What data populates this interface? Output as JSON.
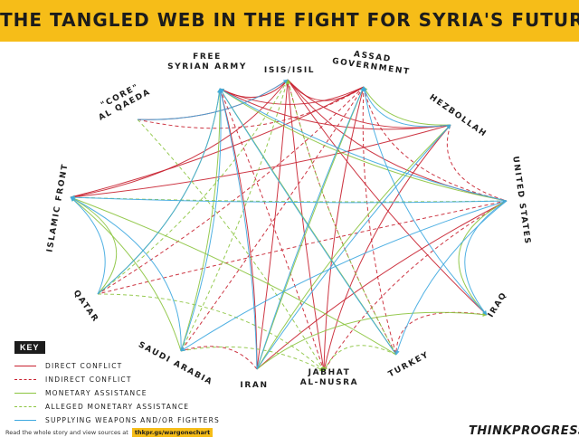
{
  "title": "THE TANGLED WEB IN THE FIGHT FOR SYRIA'S FUTURE",
  "nodes": [
    {
      "id": "fsa",
      "label_lines": [
        "FREE",
        "SYRIAN ARMY"
      ]
    },
    {
      "id": "isis",
      "label_lines": [
        "ISIS/ISIL"
      ]
    },
    {
      "id": "assad",
      "label_lines": [
        "ASSAD",
        "GOVERNMENT"
      ]
    },
    {
      "id": "hezbollah",
      "label_lines": [
        "HEZBOLLAH"
      ]
    },
    {
      "id": "usa",
      "label_lines": [
        "UNITED STATES"
      ]
    },
    {
      "id": "iraq",
      "label_lines": [
        "IRAQ"
      ]
    },
    {
      "id": "turkey",
      "label_lines": [
        "TURKEY"
      ]
    },
    {
      "id": "nusra",
      "label_lines": [
        "JABHAT",
        "AL-NUSRA"
      ]
    },
    {
      "id": "iran",
      "label_lines": [
        "IRAN"
      ]
    },
    {
      "id": "saudi",
      "label_lines": [
        "SAUDI ARABIA"
      ]
    },
    {
      "id": "qatar",
      "label_lines": [
        "QATAR"
      ]
    },
    {
      "id": "islamicfront",
      "label_lines": [
        "ISLAMIC FRONT"
      ]
    },
    {
      "id": "alqaeda",
      "label_lines": [
        "\"CORE\"",
        "AL QAEDA"
      ]
    }
  ],
  "relation_types": {
    "direct": {
      "color": "#c8202f",
      "dashed": false
    },
    "indirect": {
      "color": "#c8202f",
      "dashed": true
    },
    "money": {
      "color": "#8cc540",
      "dashed": false
    },
    "alleged": {
      "color": "#8cc540",
      "dashed": true
    },
    "weapons": {
      "color": "#3fa9e0",
      "dashed": false
    }
  },
  "relations": [
    {
      "from": "isis",
      "to": "fsa",
      "type": "direct"
    },
    {
      "from": "isis",
      "to": "assad",
      "type": "direct"
    },
    {
      "from": "isis",
      "to": "nusra",
      "type": "direct"
    },
    {
      "from": "isis",
      "to": "islamicfront",
      "type": "direct"
    },
    {
      "from": "isis",
      "to": "iraq",
      "type": "direct"
    },
    {
      "from": "isis",
      "to": "iran",
      "type": "direct"
    },
    {
      "from": "isis",
      "to": "hezbollah",
      "type": "direct"
    },
    {
      "from": "isis",
      "to": "usa",
      "type": "direct"
    },
    {
      "from": "isis",
      "to": "alqaeda",
      "type": "direct"
    },
    {
      "from": "fsa",
      "to": "assad",
      "type": "direct"
    },
    {
      "from": "fsa",
      "to": "hezbollah",
      "type": "direct"
    },
    {
      "from": "fsa",
      "to": "iran",
      "type": "direct"
    },
    {
      "from": "islamicfront",
      "to": "assad",
      "type": "direct"
    },
    {
      "from": "islamicfront",
      "to": "hezbollah",
      "type": "direct"
    },
    {
      "from": "nusra",
      "to": "assad",
      "type": "direct"
    },
    {
      "from": "nusra",
      "to": "hezbollah",
      "type": "direct"
    },
    {
      "from": "usa",
      "to": "iran",
      "type": "direct"
    },
    {
      "from": "hezbollah",
      "to": "usa",
      "type": "indirect"
    },
    {
      "from": "fsa",
      "to": "nusra",
      "type": "indirect"
    },
    {
      "from": "isis",
      "to": "turkey",
      "type": "indirect"
    },
    {
      "from": "assad",
      "to": "saudi",
      "type": "indirect"
    },
    {
      "from": "assad",
      "to": "turkey",
      "type": "indirect"
    },
    {
      "from": "assad",
      "to": "qatar",
      "type": "indirect"
    },
    {
      "from": "assad",
      "to": "usa",
      "type": "indirect"
    },
    {
      "from": "iran",
      "to": "saudi",
      "type": "indirect"
    },
    {
      "from": "usa",
      "to": "nusra",
      "type": "indirect"
    },
    {
      "from": "iraq",
      "to": "turkey",
      "type": "indirect"
    },
    {
      "from": "alqaeda",
      "to": "assad",
      "type": "indirect"
    },
    {
      "from": "usa",
      "to": "qatar",
      "type": "indirect"
    },
    {
      "from": "iran",
      "to": "assad",
      "type": "money"
    },
    {
      "from": "iran",
      "to": "hezbollah",
      "type": "money"
    },
    {
      "from": "iran",
      "to": "iraq",
      "type": "money"
    },
    {
      "from": "saudi",
      "to": "islamicfront",
      "type": "money"
    },
    {
      "from": "saudi",
      "to": "fsa",
      "type": "money"
    },
    {
      "from": "qatar",
      "to": "islamicfront",
      "type": "money"
    },
    {
      "from": "qatar",
      "to": "fsa",
      "type": "money"
    },
    {
      "from": "turkey",
      "to": "fsa",
      "type": "money"
    },
    {
      "from": "turkey",
      "to": "islamicfront",
      "type": "money"
    },
    {
      "from": "usa",
      "to": "fsa",
      "type": "money"
    },
    {
      "from": "usa",
      "to": "iraq",
      "type": "money"
    },
    {
      "from": "hezbollah",
      "to": "assad",
      "type": "money"
    },
    {
      "from": "saudi",
      "to": "isis",
      "type": "alleged"
    },
    {
      "from": "qatar",
      "to": "isis",
      "type": "alleged"
    },
    {
      "from": "qatar",
      "to": "nusra",
      "type": "alleged"
    },
    {
      "from": "saudi",
      "to": "nusra",
      "type": "alleged"
    },
    {
      "from": "turkey",
      "to": "nusra",
      "type": "alleged"
    },
    {
      "from": "alqaeda",
      "to": "nusra",
      "type": "alleged"
    },
    {
      "from": "turkey",
      "to": "isis",
      "type": "alleged"
    },
    {
      "from": "usa",
      "to": "islamicfront",
      "type": "alleged"
    },
    {
      "from": "usa",
      "to": "fsa",
      "type": "weapons"
    },
    {
      "from": "usa",
      "to": "iraq",
      "type": "weapons"
    },
    {
      "from": "usa",
      "to": "saudi",
      "type": "weapons"
    },
    {
      "from": "usa",
      "to": "turkey",
      "type": "weapons"
    },
    {
      "from": "usa",
      "to": "islamicfront",
      "type": "weapons"
    },
    {
      "from": "iran",
      "to": "fsa",
      "type": "weapons"
    },
    {
      "from": "iran",
      "to": "assad",
      "type": "weapons"
    },
    {
      "from": "iran",
      "to": "hezbollah",
      "type": "weapons"
    },
    {
      "from": "hezbollah",
      "to": "assad",
      "type": "weapons"
    },
    {
      "from": "saudi",
      "to": "fsa",
      "type": "weapons"
    },
    {
      "from": "qatar",
      "to": "fsa",
      "type": "weapons"
    },
    {
      "from": "qatar",
      "to": "islamicfront",
      "type": "weapons"
    },
    {
      "from": "turkey",
      "to": "fsa",
      "type": "weapons"
    },
    {
      "from": "iraq",
      "to": "assad",
      "type": "weapons"
    },
    {
      "from": "saudi",
      "to": "islamicfront",
      "type": "weapons"
    },
    {
      "from": "alqaeda",
      "to": "isis",
      "type": "weapons"
    }
  ],
  "key": {
    "title": "KEY",
    "items": [
      {
        "label": "DIRECT CONFLICT",
        "type": "direct"
      },
      {
        "label": "INDIRECT CONFLICT",
        "type": "indirect"
      },
      {
        "label": "MONETARY ASSISTANCE",
        "type": "money"
      },
      {
        "label": "ALLEGED MONETARY ASSISTANCE",
        "type": "alleged"
      },
      {
        "label": "SUPPLYING WEAPONS AND/OR FIGHTERS",
        "type": "weapons"
      }
    ]
  },
  "source": {
    "lead": "Read the whole story and view sources at",
    "url": "thkpr.gs/wargonechart"
  },
  "brand": "THINKPROGRESS"
}
